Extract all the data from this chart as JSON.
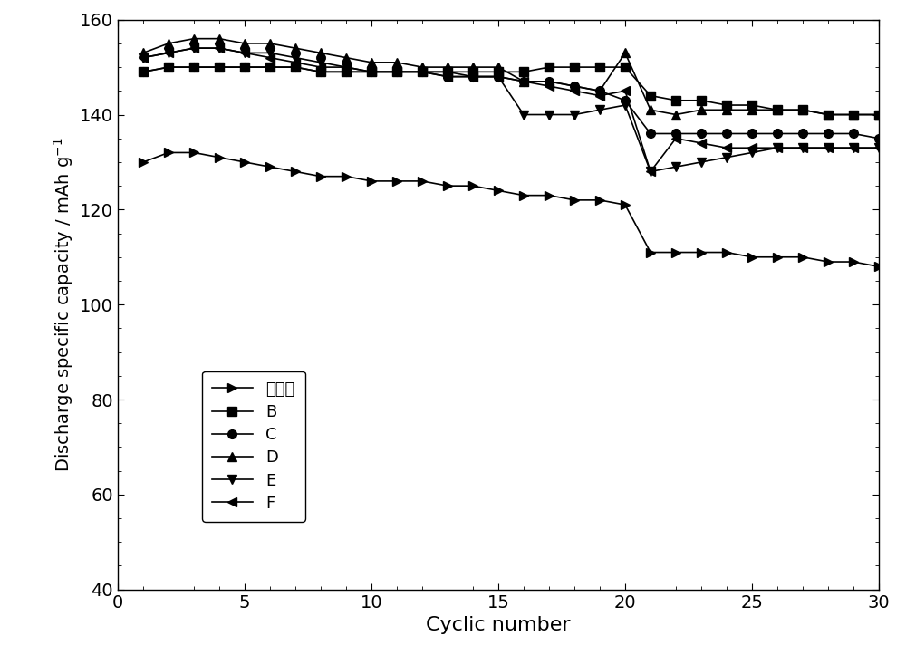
{
  "series": {
    "对比样": {
      "x": [
        1,
        2,
        3,
        4,
        5,
        6,
        7,
        8,
        9,
        10,
        11,
        12,
        13,
        14,
        15,
        16,
        17,
        18,
        19,
        20,
        21,
        22,
        23,
        24,
        25,
        26,
        27,
        28,
        29,
        30
      ],
      "y": [
        130,
        132,
        132,
        131,
        130,
        129,
        128,
        127,
        127,
        126,
        126,
        126,
        125,
        125,
        124,
        123,
        123,
        122,
        122,
        121,
        111,
        111,
        111,
        111,
        110,
        110,
        110,
        109,
        109,
        108
      ],
      "marker": ">",
      "label": "对比样"
    },
    "B": {
      "x": [
        1,
        2,
        3,
        4,
        5,
        6,
        7,
        8,
        9,
        10,
        11,
        12,
        13,
        14,
        15,
        16,
        17,
        18,
        19,
        20,
        21,
        22,
        23,
        24,
        25,
        26,
        27,
        28,
        29,
        30
      ],
      "y": [
        149,
        150,
        150,
        150,
        150,
        150,
        150,
        149,
        149,
        149,
        149,
        149,
        149,
        149,
        149,
        149,
        150,
        150,
        150,
        150,
        144,
        143,
        143,
        142,
        142,
        141,
        141,
        140,
        140,
        140
      ],
      "marker": "s",
      "label": "B"
    },
    "C": {
      "x": [
        1,
        2,
        3,
        4,
        5,
        6,
        7,
        8,
        9,
        10,
        11,
        12,
        13,
        14,
        15,
        16,
        17,
        18,
        19,
        20,
        21,
        22,
        23,
        24,
        25,
        26,
        27,
        28,
        29,
        30
      ],
      "y": [
        149,
        150,
        150,
        150,
        150,
        150,
        150,
        149,
        149,
        149,
        149,
        149,
        148,
        148,
        148,
        147,
        147,
        146,
        145,
        143,
        136,
        136,
        136,
        136,
        136,
        136,
        136,
        136,
        136,
        135
      ],
      "marker": "o",
      "label": "C"
    },
    "D": {
      "x": [
        1,
        2,
        3,
        4,
        5,
        6,
        7,
        8,
        9,
        10,
        11,
        12,
        13,
        14,
        15,
        16,
        17,
        18,
        19,
        20,
        21,
        22,
        23,
        24,
        25,
        26,
        27,
        28,
        29,
        30
      ],
      "y": [
        153,
        155,
        156,
        156,
        155,
        155,
        154,
        153,
        152,
        151,
        151,
        150,
        150,
        150,
        150,
        147,
        147,
        146,
        145,
        153,
        141,
        140,
        141,
        141,
        141,
        141,
        141,
        140,
        140,
        140
      ],
      "marker": "^",
      "label": "D"
    },
    "E": {
      "x": [
        1,
        2,
        3,
        4,
        5,
        6,
        7,
        8,
        9,
        10,
        11,
        12,
        13,
        14,
        15,
        16,
        17,
        18,
        19,
        20,
        21,
        22,
        23,
        24,
        25,
        26,
        27,
        28,
        29,
        30
      ],
      "y": [
        152,
        153,
        154,
        154,
        153,
        153,
        152,
        151,
        150,
        149,
        149,
        149,
        149,
        148,
        148,
        140,
        140,
        140,
        141,
        142,
        128,
        129,
        130,
        131,
        132,
        133,
        133,
        133,
        133,
        133
      ],
      "marker": "v",
      "label": "E"
    },
    "F": {
      "x": [
        1,
        2,
        3,
        4,
        5,
        6,
        7,
        8,
        9,
        10,
        11,
        12,
        13,
        14,
        15,
        16,
        17,
        18,
        19,
        20,
        21,
        22,
        23,
        24,
        25,
        26,
        27,
        28,
        29,
        30
      ],
      "y": [
        152,
        153,
        154,
        154,
        153,
        152,
        151,
        150,
        150,
        149,
        149,
        149,
        148,
        148,
        148,
        147,
        146,
        145,
        144,
        145,
        128,
        135,
        134,
        133,
        133,
        133,
        133,
        133,
        133,
        133
      ],
      "marker": "<",
      "label": "F"
    }
  },
  "xlabel": "Cyclic number",
  "ylabel": "Discharge specific capacity / mAh g",
  "ylabel_sup": "-1",
  "xlim": [
    0,
    30
  ],
  "ylim": [
    40,
    160
  ],
  "yticks": [
    40,
    60,
    80,
    100,
    120,
    140,
    160
  ],
  "xticks": [
    0,
    5,
    10,
    15,
    20,
    25,
    30
  ],
  "color": "#000000",
  "linewidth": 1.2,
  "markersize": 7,
  "background_color": "#ffffff",
  "xlabel_fontsize": 16,
  "ylabel_fontsize": 14,
  "tick_fontsize": 14
}
